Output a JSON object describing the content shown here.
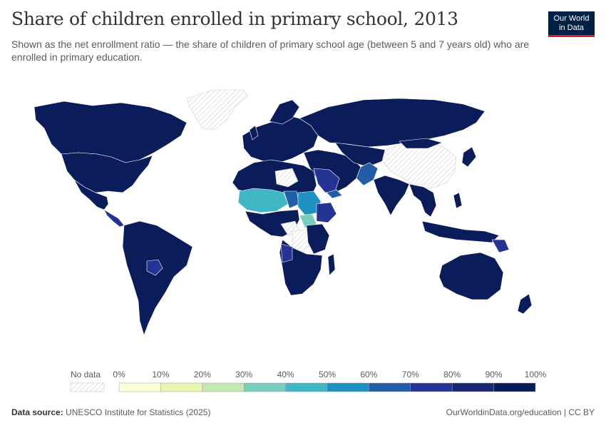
{
  "header": {
    "title": "Share of children enrolled in primary school, 2013",
    "subtitle": "Shown as the net enrollment ratio — the share of children of primary school age (between 5 and 7 years old) who are enrolled in primary education."
  },
  "logo": {
    "line1": "Our World",
    "line2": "in Data"
  },
  "legend": {
    "no_data_label": "No data",
    "bins": [
      {
        "label": "0%",
        "color": "#feffd6"
      },
      {
        "label": "10%",
        "color": "#e9f6b0"
      },
      {
        "label": "20%",
        "color": "#c4e7b3"
      },
      {
        "label": "30%",
        "color": "#79cdbb"
      },
      {
        "label": "40%",
        "color": "#41b6c4"
      },
      {
        "label": "50%",
        "color": "#1d91c0"
      },
      {
        "label": "60%",
        "color": "#225ea8"
      },
      {
        "label": "70%",
        "color": "#253494"
      },
      {
        "label": "80%",
        "color": "#1c2670"
      },
      {
        "label": "90%",
        "color": "#081d58"
      },
      {
        "label": "100%",
        "color": ""
      }
    ]
  },
  "footer": {
    "source_label": "Data source:",
    "source": "UNESCO Institute for Statistics (2025)",
    "url": "OurWorldinData.org/education | CC BY"
  },
  "colors": {
    "high": "#0b1c5a",
    "mid_high": "#253494",
    "mid": "#225ea8",
    "teal": "#41b6c4",
    "light_teal": "#79cdbb",
    "no_data": "#ffffff"
  }
}
